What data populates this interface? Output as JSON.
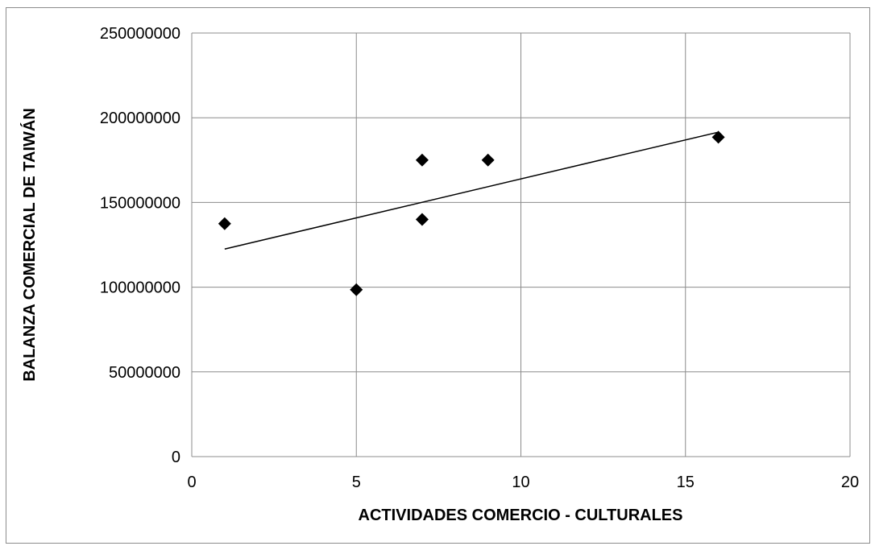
{
  "chart_data": {
    "type": "scatter",
    "title": "",
    "xlabel": "ACTIVIDADES COMERCIO - CULTURALES",
    "ylabel": "BALANZA COMERCIAL DE TAIWÁN",
    "xlim": [
      0,
      20
    ],
    "ylim": [
      0,
      250000000
    ],
    "x_ticks": [
      0,
      5,
      10,
      15,
      20
    ],
    "y_ticks": [
      0,
      50000000,
      100000000,
      150000000,
      200000000,
      250000000
    ],
    "x_tick_labels": [
      "0",
      "5",
      "10",
      "15",
      "20"
    ],
    "y_tick_labels": [
      "0",
      "50000000",
      "100000000",
      "150000000",
      "200000000",
      "250000000"
    ],
    "grid": true,
    "legend": "none",
    "marker": "diamond",
    "marker_color": "#000000",
    "points": [
      {
        "x": 1,
        "y": 137500000
      },
      {
        "x": 5,
        "y": 98500000
      },
      {
        "x": 7,
        "y": 175000000
      },
      {
        "x": 7,
        "y": 140000000
      },
      {
        "x": 9,
        "y": 175000000
      },
      {
        "x": 16,
        "y": 188500000
      }
    ],
    "trendline": {
      "type": "linear",
      "from": {
        "x": 1,
        "y": 122500000
      },
      "to": {
        "x": 16,
        "y": 191500000
      }
    }
  }
}
